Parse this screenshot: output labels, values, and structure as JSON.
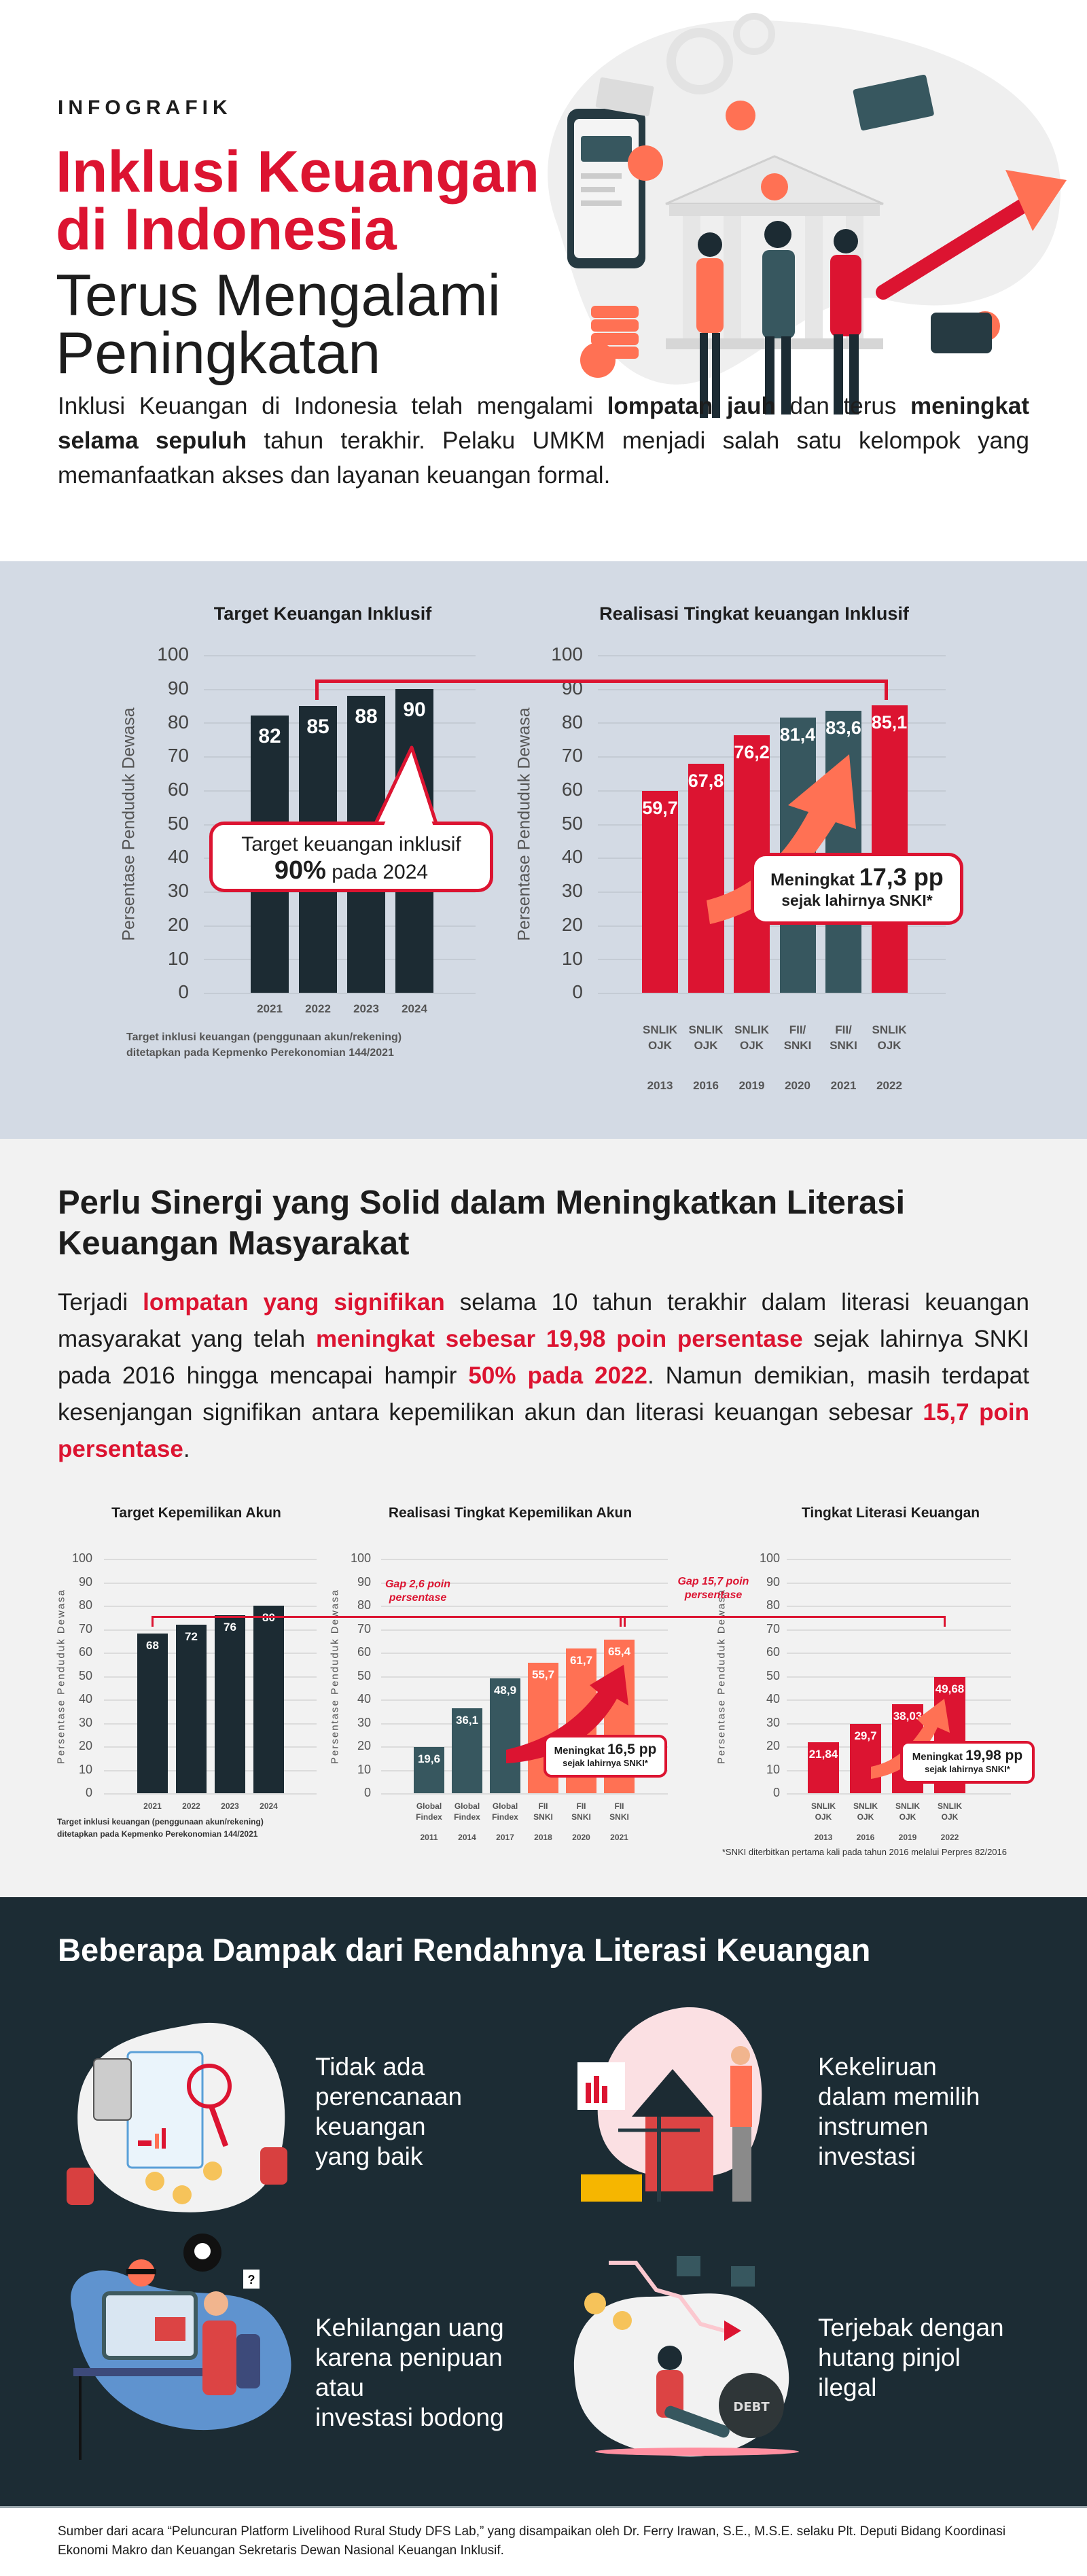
{
  "header": {
    "kicker": "INFOGRAFIK",
    "title_red_1": "Inklusi Keuangan",
    "title_red_2": "di Indonesia",
    "title_dark_1": "Terus Mengalami",
    "title_dark_2": "Peningkatan"
  },
  "intro": {
    "segments": [
      "Inklusi Keuangan di Indonesia telah mengalami ",
      "lompatan jauh",
      " dan terus ",
      "meningkat selama sepuluh",
      " tahun terakhir.  Pelaku UMKM menjadi salah satu kelompok yang memanfaatkan akses dan layanan keuangan formal."
    ]
  },
  "section1": {
    "callout_target": {
      "line1": "Target keuangan inklusif",
      "bold": "90%",
      "rest": " pada 2024"
    },
    "callout_realisasi": {
      "pre": "Meningkat ",
      "big": "17,3 pp",
      "line2": "sejak lahirnya SNKI*"
    },
    "note_line1": "Target inklusi keuangan (penggunaan akun/rekening)",
    "note_line2": "ditetapkan pada Kepmenko Perekonomian 144/2021"
  },
  "section2": {
    "heading": "Perlu Sinergi yang Solid dalam Meningkatkan Literasi Keuangan Masyarakat",
    "segments": [
      "Terjadi ",
      "lompatan yang signifikan",
      " selama 10 tahun terakhir dalam literasi keuangan masyarakat yang telah ",
      "meningkat sebesar 19,98 poin persentase",
      " sejak lahirnya SNKI pada 2016 hingga mencapai hampir ",
      "50% pada 2022",
      ". Namun demikian, masih terdapat kesenjangan signifikan antara kepemilikan akun dan literasi keuangan sebesar ",
      "15,7 poin persentase",
      "."
    ],
    "gap_1": "Gap 2,6 poin\npersentase",
    "gap_2": "Gap 15,7 poin\npersentase",
    "callout_akun": {
      "pre": "Meningkat ",
      "big": "16,5 pp",
      "line2": "sejak lahirnya SNKI*"
    },
    "callout_literasi": {
      "pre": "Meningkat ",
      "big": "19,98 pp",
      "line2": "sejak lahirnya SNKI*"
    },
    "note_line1": "Target inklusi keuangan (penggunaan akun/rekening)",
    "note_line2": "ditetapkan pada Kepmenko Perekonomian 144/2021",
    "footnote": "*SNKI diterbitkan pertama kali pada tahun 2016 melalui Perpres 82/2016"
  },
  "section3": {
    "title": "Beberapa Dampak dari Rendahnya Literasi Keuangan",
    "items": [
      {
        "text": "Tidak ada\nperencanaan\nkeuangan\nyang baik",
        "icon": "financial-planning-illustration"
      },
      {
        "text": "Kekeliruan\ndalam memilih\ninstrumen\ninvestasi",
        "icon": "investment-choice-illustration"
      },
      {
        "text": "Kehilangan uang\nkarena penipuan\natau\ninvestasi bodong",
        "icon": "fraud-illustration"
      },
      {
        "text": "Terjebak dengan\nhutang pinjol\nilegal",
        "icon": "debt-illustration"
      }
    ]
  },
  "footer": {
    "source": "Sumber dari acara “Peluncuran Platform Livelihood Rural Study DFS Lab,” yang disampaikan oleh Dr. Ferry Irawan, S.E., M.S.E. selaku Plt. Deputi Bidang Koordinasi Ekonomi Makro dan Keuangan Sekretaris Dewan Nasional Keuangan Inklusif."
  },
  "colors": {
    "red": "#dc1431",
    "dark": "#1c2b33",
    "teal": "#37575f",
    "coral": "#ff7154",
    "panel": "#d3dae4",
    "darkbg": "#1c2c34"
  },
  "chart_data": [
    {
      "type": "bar",
      "title": "Target Keuangan Inklusif",
      "ylabel": "Persentase Penduduk Dewasa",
      "ylim": [
        0,
        100
      ],
      "yticks": [
        0,
        10,
        20,
        30,
        40,
        50,
        60,
        70,
        80,
        90,
        100
      ],
      "categories": [
        "2021",
        "2022",
        "2023",
        "2024"
      ],
      "years": [],
      "values": [
        82,
        85,
        88,
        90
      ],
      "value_labels": [
        "82",
        "85",
        "88",
        "90"
      ],
      "colors": [
        "#1c2b33",
        "#1c2b33",
        "#1c2b33",
        "#1c2b33"
      ],
      "grid": true
    },
    {
      "type": "bar",
      "title": "Realisasi Tingkat keuangan Inklusif",
      "ylabel": "Persentase Penduduk Dewasa",
      "ylim": [
        0,
        100
      ],
      "yticks": [
        0,
        10,
        20,
        30,
        40,
        50,
        60,
        70,
        80,
        90,
        100
      ],
      "categories": [
        "SNLIK\nOJK",
        "SNLIK\nOJK",
        "SNLIK\nOJK",
        "FII/\nSNKI",
        "FII/\nSNKI",
        "SNLIK\nOJK"
      ],
      "years": [
        "2013",
        "2016",
        "2019",
        "2020",
        "2021",
        "2022"
      ],
      "values": [
        59.7,
        67.8,
        76.2,
        81.4,
        83.6,
        85.1
      ],
      "value_labels": [
        "59,7",
        "67,8",
        "76,2",
        "81,4",
        "83,6",
        "85,1"
      ],
      "colors": [
        "#dc1431",
        "#dc1431",
        "#dc1431",
        "#37575f",
        "#37575f",
        "#dc1431"
      ],
      "grid": true
    },
    {
      "type": "bar",
      "title": "Target Kepemilikan Akun",
      "ylabel": "Persentase Penduduk Dewasa",
      "ylim": [
        0,
        100
      ],
      "yticks": [
        0,
        10,
        20,
        30,
        40,
        50,
        60,
        70,
        80,
        90,
        100
      ],
      "categories": [
        "2021",
        "2022",
        "2023",
        "2024"
      ],
      "years": [],
      "values": [
        68,
        72,
        76,
        80
      ],
      "value_labels": [
        "68",
        "72",
        "76",
        "80"
      ],
      "colors": [
        "#1c2b33",
        "#1c2b33",
        "#1c2b33",
        "#1c2b33"
      ],
      "grid": true
    },
    {
      "type": "bar",
      "title": "Realisasi Tingkat Kepemilikan Akun",
      "ylabel": "Persentase Penduduk Dewasa",
      "ylim": [
        0,
        100
      ],
      "yticks": [
        0,
        10,
        20,
        30,
        40,
        50,
        60,
        70,
        80,
        90,
        100
      ],
      "categories": [
        "Global\nFindex",
        "Global\nFindex",
        "Global\nFindex",
        "FII\nSNKI",
        "FII\nSNKI",
        "FII\nSNKI"
      ],
      "years": [
        "2011",
        "2014",
        "2017",
        "2018",
        "2020",
        "2021"
      ],
      "values": [
        19.6,
        36.1,
        48.9,
        55.7,
        61.7,
        65.4
      ],
      "value_labels": [
        "19,6",
        "36,1",
        "48,9",
        "55,7",
        "61,7",
        "65,4"
      ],
      "colors": [
        "#37575f",
        "#37575f",
        "#37575f",
        "#ff7154",
        "#ff7154",
        "#ff7154"
      ],
      "grid": true
    },
    {
      "type": "bar",
      "title": "Tingkat Literasi Keuangan",
      "ylabel": "Persentase Penduduk Dewasa",
      "ylim": [
        0,
        100
      ],
      "yticks": [
        0,
        10,
        20,
        30,
        40,
        50,
        60,
        70,
        80,
        90,
        100
      ],
      "categories": [
        "SNLIK\nOJK",
        "SNLIK\nOJK",
        "SNLIK\nOJK",
        "SNLIK\nOJK"
      ],
      "years": [
        "2013",
        "2016",
        "2019",
        "2022"
      ],
      "values": [
        21.84,
        29.7,
        38.03,
        49.68
      ],
      "value_labels": [
        "21,84",
        "29,7",
        "38,03",
        "49,68"
      ],
      "colors": [
        "#dc1431",
        "#dc1431",
        "#dc1431",
        "#dc1431"
      ],
      "grid": true
    }
  ]
}
